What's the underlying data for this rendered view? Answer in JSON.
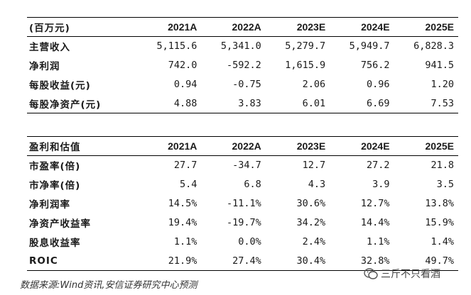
{
  "table1": {
    "header": [
      "(百万元)",
      "2021A",
      "2022A",
      "2023E",
      "2024E",
      "2025E"
    ],
    "rows": [
      {
        "label": "主营收入",
        "values": [
          "5,115.6",
          "5,341.0",
          "5,279.7",
          "5,949.7",
          "6,828.3"
        ]
      },
      {
        "label": "净利润",
        "values": [
          "742.0",
          "-592.2",
          "1,615.9",
          "756.2",
          "941.5"
        ]
      },
      {
        "label": "每股收益(元)",
        "values": [
          "0.94",
          "-0.75",
          "2.06",
          "0.96",
          "1.20"
        ]
      },
      {
        "label": "每股净资产(元)",
        "values": [
          "4.88",
          "3.83",
          "6.01",
          "6.69",
          "7.53"
        ]
      }
    ]
  },
  "table2": {
    "header": [
      "盈利和估值",
      "2021A",
      "2022A",
      "2023E",
      "2024E",
      "2025E"
    ],
    "rows": [
      {
        "label": "市盈率(倍)",
        "values": [
          "27.7",
          "-34.7",
          "12.7",
          "27.2",
          "21.8"
        ]
      },
      {
        "label": "市净率(倍)",
        "values": [
          "5.4",
          "6.8",
          "4.3",
          "3.9",
          "3.5"
        ]
      },
      {
        "label": "净利润率",
        "values": [
          "14.5%",
          "-11.1%",
          "30.6%",
          "12.7%",
          "13.8%"
        ]
      },
      {
        "label": "净资产收益率",
        "values": [
          "19.4%",
          "-19.7%",
          "34.2%",
          "14.4%",
          "15.9%"
        ]
      },
      {
        "label": "股息收益率",
        "values": [
          "1.1%",
          "0.0%",
          "2.4%",
          "1.1%",
          "1.4%"
        ]
      },
      {
        "label": "ROIC",
        "values": [
          "21.9%",
          "27.4%",
          "30.4%",
          "32.8%",
          "49.7%"
        ]
      }
    ]
  },
  "source": "数据来源:Wind资讯,安信证券研究中心预测",
  "watermark": "三斤不只看酒",
  "watermark_icon": "wechat-icon"
}
